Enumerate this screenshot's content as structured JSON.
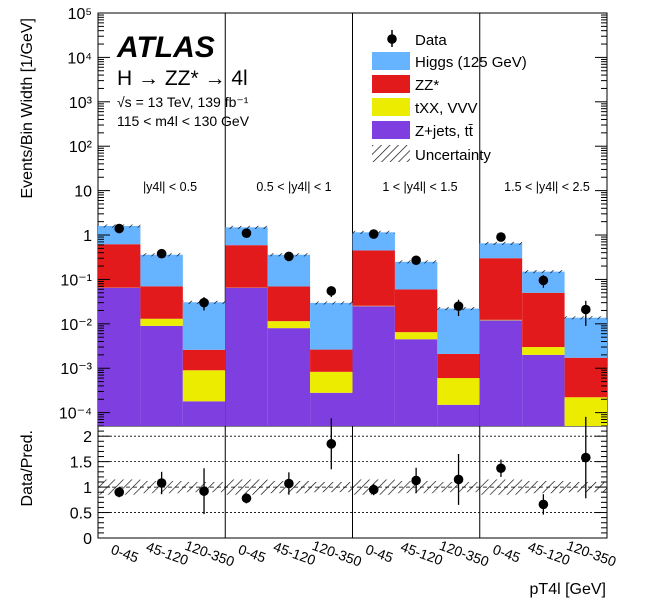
{
  "chart_data": {
    "type": "bar",
    "stacked": true,
    "log_y": true,
    "colors": {
      "higgs": "#66b3ff",
      "zz": "#e31a1c",
      "txx": "#ecec00",
      "zjets": "#7f3fe0",
      "data": "#000000"
    },
    "atlas_label": "ATLAS",
    "process_label": "H → ZZ* → 4l",
    "energy_label": "√s = 13 TeV, 139 fb⁻¹",
    "mass_label": "115 < m4l < 130 GeV",
    "ylabel": "Events/Bin Width [1/GeV]",
    "ratio_ylabel": "Data/Pred.",
    "xlabel": "pT4l [GeV]",
    "ylim": [
      5e-05,
      100000
    ],
    "yticks": [
      "10⁻⁴",
      "10⁻³",
      "10⁻²",
      "10⁻¹",
      "1",
      "10",
      "10²",
      "10³",
      "10⁴",
      "10⁵"
    ],
    "ratio_ylim": [
      0,
      2.2
    ],
    "ratio_yticks": [
      "0",
      "0.5",
      "1",
      "1.5",
      "2"
    ],
    "legend": [
      {
        "key": "data",
        "label": "Data"
      },
      {
        "key": "higgs",
        "label": "Higgs (125 GeV)"
      },
      {
        "key": "zz",
        "label": "ZZ*"
      },
      {
        "key": "txx",
        "label": "tXX, VVV"
      },
      {
        "key": "zjets",
        "label": "Z+jets, tt̄"
      },
      {
        "key": "unc",
        "label": "Uncertainty"
      }
    ],
    "categories": [
      "0-45",
      "45-120",
      "120-350",
      "0-45",
      "45-120",
      "120-350",
      "0-45",
      "45-120",
      "120-350",
      "0-45",
      "45-120",
      "120-350"
    ],
    "regions": [
      "|y4l| < 0.5",
      "0.5 < |y4l| < 1",
      "1 < |y4l| < 1.5",
      "1.5 < |y4l| < 2.5"
    ],
    "series": [
      {
        "name": "Z+jets, tt̄",
        "key": "zjets",
        "values": [
          0.065,
          0.009,
          0.00018,
          0.065,
          0.008,
          0.00028,
          0.025,
          0.0045,
          0.00015,
          0.012,
          0.002,
          2.2e-05
        ]
      },
      {
        "name": "tXX, VVV",
        "key": "txx",
        "values": [
          0.0005,
          0.004,
          0.00072,
          0.0005,
          0.0035,
          0.00055,
          0.0005,
          0.002,
          0.00045,
          0.0003,
          0.001,
          0.0002
        ]
      },
      {
        "name": "ZZ*",
        "key": "zz",
        "values": [
          0.555,
          0.057,
          0.0017,
          0.525,
          0.058,
          0.0018,
          0.425,
          0.053,
          0.0015,
          0.288,
          0.047,
          0.0015
        ]
      },
      {
        "name": "Higgs (125 GeV)",
        "key": "higgs",
        "values": [
          0.98,
          0.29,
          0.028,
          0.9,
          0.29,
          0.027,
          0.7,
          0.19,
          0.02,
          0.35,
          0.1,
          0.012
        ]
      }
    ],
    "data_points": [
      {
        "y": 1.4,
        "err": 0.15
      },
      {
        "y": 0.38,
        "err": 0.07
      },
      {
        "y": 0.03,
        "err": 0.01
      },
      {
        "y": 1.1,
        "err": 0.13
      },
      {
        "y": 0.33,
        "err": 0.06
      },
      {
        "y": 0.055,
        "err": 0.015
      },
      {
        "y": 1.05,
        "err": 0.12
      },
      {
        "y": 0.27,
        "err": 0.05
      },
      {
        "y": 0.025,
        "err": 0.01
      },
      {
        "y": 0.9,
        "err": 0.12
      },
      {
        "y": 0.095,
        "err": 0.03
      },
      {
        "y": 0.021,
        "err": 0.012
      }
    ],
    "ratio_points": [
      {
        "y": 0.9,
        "err": 0.1
      },
      {
        "y": 1.08,
        "err": 0.22
      },
      {
        "y": 0.92,
        "err": 0.45
      },
      {
        "y": 0.78,
        "err": 0.1
      },
      {
        "y": 1.07,
        "err": 0.22
      },
      {
        "y": 1.85,
        "err": 0.5
      },
      {
        "y": 0.95,
        "err": 0.11
      },
      {
        "y": 1.13,
        "err": 0.25
      },
      {
        "y": 1.15,
        "err": 0.5
      },
      {
        "y": 1.37,
        "err": 0.17
      },
      {
        "y": 0.66,
        "err": 0.2
      },
      {
        "y": 1.58,
        "err": 0.8
      }
    ],
    "ratio_unc": [
      0.15,
      0.12,
      0.1,
      0.15,
      0.12,
      0.1,
      0.15,
      0.12,
      0.1,
      0.15,
      0.12,
      0.1
    ]
  }
}
